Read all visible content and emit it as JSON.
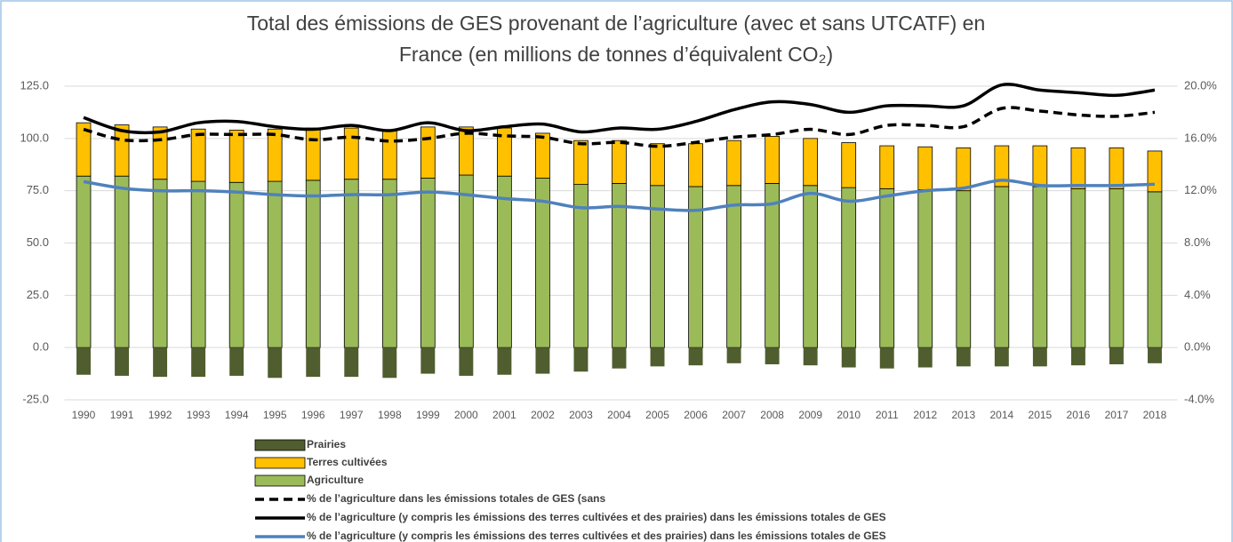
{
  "chart_data": {
    "type": "bar",
    "title": [
      "Total des émissions de GES provenant de l’agriculture (avec et sans UTCATF) en",
      "France (en millions de tonnes d’équivalent CO₂)"
    ],
    "categories": [
      "1990",
      "1991",
      "1992",
      "1993",
      "1994",
      "1995",
      "1996",
      "1997",
      "1998",
      "1999",
      "2000",
      "2001",
      "2002",
      "2003",
      "2004",
      "2005",
      "2006",
      "2007",
      "2008",
      "2009",
      "2010",
      "2011",
      "2012",
      "2013",
      "2014",
      "2015",
      "2016",
      "2017",
      "2018"
    ],
    "series": [
      {
        "name": "Prairies",
        "type": "bar",
        "color": "#4f5d2f",
        "values": [
          -13,
          -13.5,
          -14,
          -14,
          -13.5,
          -14.5,
          -14,
          -14,
          -14.5,
          -12.5,
          -13.5,
          -13,
          -12.5,
          -11.5,
          -10,
          -9,
          -8.5,
          -7.5,
          -8,
          -8.5,
          -9.5,
          -10,
          -9.5,
          -9,
          -9,
          -9,
          -8.5,
          -8,
          -7.5
        ]
      },
      {
        "name": "Terres cultivées",
        "type": "bar",
        "color": "#ffc000",
        "values": [
          25.5,
          24.5,
          25,
          25,
          25,
          25,
          25,
          24.5,
          23,
          24.5,
          23,
          23,
          21.5,
          21,
          20.5,
          20,
          20.5,
          21.5,
          22.5,
          22.5,
          21.5,
          20.5,
          20.5,
          20.5,
          19.5,
          19.5,
          19.5,
          19.5,
          19.5
        ]
      },
      {
        "name": "Agriculture",
        "type": "bar",
        "color": "#9bbb59",
        "values": [
          82,
          82,
          80.5,
          79.5,
          79,
          79.5,
          80,
          80.5,
          80.5,
          81,
          82.5,
          82,
          81,
          78,
          78.5,
          77.5,
          77,
          77.5,
          78.5,
          77.5,
          76.5,
          76,
          75.5,
          75,
          77,
          77,
          76,
          76,
          74.5
        ]
      },
      {
        "name": "% de l’agriculture dans les émissions totales de GES (sans",
        "type": "line",
        "axis": "y2",
        "dash": true,
        "color": "#000000",
        "values": [
          16.7,
          15.9,
          15.9,
          16.3,
          16.3,
          16.3,
          15.9,
          16.1,
          15.8,
          16.0,
          16.4,
          16.2,
          16.1,
          15.6,
          15.7,
          15.4,
          15.7,
          16.1,
          16.3,
          16.7,
          16.3,
          17.0,
          17.0,
          16.9,
          18.3,
          18.1,
          17.8,
          17.7,
          18.0
        ]
      },
      {
        "name": "% de l’agriculture (y compris les émissions des terres cultivées et des prairies) dans les émissions totales de GES",
        "type": "line",
        "axis": "y2",
        "dash": false,
        "color": "#000000",
        "values": [
          17.6,
          16.6,
          16.5,
          17.2,
          17.3,
          16.9,
          16.7,
          17.0,
          16.6,
          17.2,
          16.6,
          16.9,
          17.1,
          16.5,
          16.8,
          16.7,
          17.3,
          18.2,
          18.8,
          18.6,
          18.0,
          18.5,
          18.5,
          18.5,
          20.1,
          19.7,
          19.5,
          19.3,
          19.7
        ]
      },
      {
        "name": "% de l’agriculture (y compris les émissions des terres cultivées et des prairies) dans les émissions totales de GES",
        "type": "line",
        "axis": "y2",
        "dash": false,
        "color": "#4f81bd",
        "values": [
          12.7,
          12.2,
          12.0,
          12.0,
          11.9,
          11.7,
          11.6,
          11.7,
          11.7,
          11.9,
          11.7,
          11.4,
          11.2,
          10.7,
          10.8,
          10.6,
          10.5,
          10.9,
          11.0,
          11.8,
          11.2,
          11.6,
          12.0,
          12.2,
          12.8,
          12.4,
          12.4,
          12.4,
          12.5
        ]
      }
    ],
    "ylim": [
      -25,
      125
    ],
    "yticks": [
      {
        "value": -25,
        "label": "-25.0"
      },
      {
        "value": 0,
        "label": "0.0"
      },
      {
        "value": 25,
        "label": "25.0"
      },
      {
        "value": 50,
        "label": "50.0"
      },
      {
        "value": 75,
        "label": "75.0"
      },
      {
        "value": 100,
        "label": "100.0"
      },
      {
        "value": 125,
        "label": "125.0"
      }
    ],
    "y2lim": [
      -4,
      20
    ],
    "y2ticks": [
      {
        "value": -4,
        "label": "-4.0%"
      },
      {
        "value": 0,
        "label": "0.0%"
      },
      {
        "value": 4,
        "label": "4.0%"
      },
      {
        "value": 8,
        "label": "8.0%"
      },
      {
        "value": 12,
        "label": "12.0%"
      },
      {
        "value": 16,
        "label": "16.0%"
      },
      {
        "value": 20,
        "label": "20.0%"
      }
    ],
    "grid": true,
    "legend": "bottom"
  }
}
